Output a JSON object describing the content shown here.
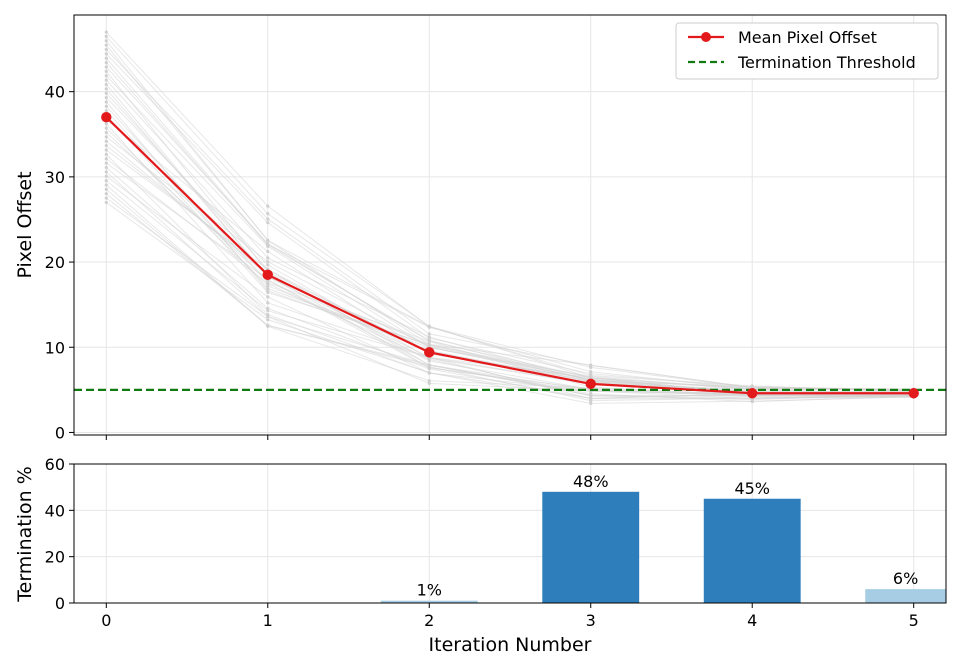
{
  "chart_data": [
    {
      "type": "line",
      "ylabel": "Pixel Offset",
      "xlabel": "",
      "x": [
        0,
        1,
        2,
        3,
        4,
        5
      ],
      "xlim": [
        -0.2,
        5.2
      ],
      "ylim": [
        -0.3,
        49
      ],
      "yticks": [
        0,
        10,
        20,
        30,
        40
      ],
      "grid": true,
      "legend": {
        "position": "top-right",
        "entries": [
          "Mean Pixel Offset",
          "Termination Threshold"
        ]
      },
      "series": [
        {
          "name": "Mean Pixel Offset",
          "color": "#e31a1c",
          "x": [
            0,
            1,
            2,
            3,
            4,
            5
          ],
          "values": [
            37.0,
            18.5,
            9.4,
            5.7,
            4.6,
            4.6
          ]
        }
      ],
      "threshold": {
        "name": "Termination Threshold",
        "value": 5,
        "color": "#117a11",
        "style": "dashed"
      },
      "background_trajectories": {
        "color": "#d3d3d3",
        "count": 40,
        "start_range": [
          27,
          47
        ],
        "end_values_sample": [
          3.6,
          4.1,
          4.6,
          5.0,
          5.4,
          5.9
        ]
      }
    },
    {
      "type": "bar",
      "ylabel": "Termination %",
      "xlabel": "Iteration Number",
      "categories": [
        "0",
        "1",
        "2",
        "3",
        "4",
        "5"
      ],
      "values": [
        0,
        0,
        1,
        48,
        45,
        6
      ],
      "data_labels": [
        "",
        "",
        "1%",
        "48%",
        "45%",
        "6%"
      ],
      "bar_colors": [
        "#2f7ebc",
        "#2f7ebc",
        "#a6cde3",
        "#2f7ebc",
        "#2f7ebc",
        "#a6cde3"
      ],
      "ylim": [
        0,
        60
      ],
      "yticks": [
        0,
        20,
        40,
        60
      ],
      "grid": true
    }
  ]
}
